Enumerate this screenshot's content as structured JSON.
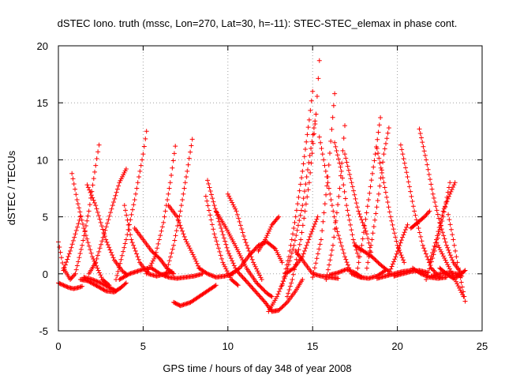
{
  "chart_data": {
    "type": "scatter",
    "title": "dSTEC Iono. truth (mssc, Lon=270, Lat=30, h=-11): STEC-STEC_elemax in phase cont.",
    "xlabel": "GPS time / hours of day 348 of year 2008",
    "ylabel": "dSTEC  / TECUs",
    "xlim": [
      0,
      25
    ],
    "ylim": [
      -5,
      20
    ],
    "xticks": [
      0,
      5,
      10,
      15,
      20,
      25
    ],
    "yticks": [
      -5,
      0,
      5,
      10,
      15,
      20
    ],
    "grid": true,
    "marker": "+",
    "colors": {
      "points": "#ff0000"
    },
    "arc_sampling_hours": 0.06,
    "series": [
      {
        "x": [
          0.0,
          0.3,
          0.7,
          1.0,
          1.4,
          1.8,
          2.2,
          2.4
        ],
        "y": [
          2.8,
          0.5,
          -0.5,
          0.0,
          2.5,
          5.5,
          9.5,
          11.3
        ]
      },
      {
        "x": [
          0.0,
          0.3,
          0.6,
          0.9,
          1.2,
          1.4
        ],
        "y": [
          -0.8,
          -1.0,
          -1.2,
          -1.3,
          -1.2,
          -1.1
        ]
      },
      {
        "x": [
          0.3,
          0.7,
          1.0,
          1.3
        ],
        "y": [
          0.3,
          2.0,
          3.5,
          5.0
        ]
      },
      {
        "x": [
          0.8,
          1.1,
          1.5,
          2.0,
          2.6,
          3.0
        ],
        "y": [
          8.8,
          6.5,
          4.0,
          1.5,
          -0.5,
          -1.0
        ]
      },
      {
        "x": [
          1.3,
          1.7,
          2.2,
          2.8,
          3.3,
          3.7,
          4.0
        ],
        "y": [
          -0.5,
          -0.6,
          -1.0,
          -1.5,
          -1.6,
          -1.2,
          -0.8
        ]
      },
      {
        "x": [
          1.7,
          2.2,
          2.8,
          3.3,
          3.8,
          4.0
        ],
        "y": [
          7.8,
          6.0,
          3.0,
          1.2,
          0.2,
          0.0
        ]
      },
      {
        "x": [
          1.8,
          2.2,
          2.7,
          3.2,
          3.6,
          4.0
        ],
        "y": [
          0.0,
          1.0,
          3.5,
          6.0,
          8.0,
          9.2
        ]
      },
      {
        "x": [
          1.5,
          2.0,
          2.5,
          3.0,
          3.4
        ],
        "y": [
          -0.3,
          -0.5,
          -0.8,
          -1.2,
          -1.5
        ]
      },
      {
        "x": [
          3.9,
          4.3,
          4.8,
          5.3,
          5.8,
          6.3,
          6.7
        ],
        "y": [
          6.0,
          3.0,
          1.0,
          0.0,
          -0.2,
          0.0,
          0.2
        ]
      },
      {
        "x": [
          3.4,
          4.0,
          4.5,
          5.0,
          5.2
        ],
        "y": [
          -0.5,
          3.0,
          6.5,
          10.5,
          12.5
        ]
      },
      {
        "x": [
          3.6,
          4.2,
          4.8,
          5.3
        ],
        "y": [
          -0.5,
          0.0,
          0.3,
          0.5
        ]
      },
      {
        "x": [
          4.5,
          5.0,
          5.5,
          6.0,
          6.4,
          6.8
        ],
        "y": [
          4.0,
          3.0,
          2.0,
          1.3,
          0.5,
          0.0
        ]
      },
      {
        "x": [
          5.2,
          5.7,
          6.2,
          6.6,
          6.9
        ],
        "y": [
          0.0,
          1.5,
          4.5,
          8.0,
          11.2
        ]
      },
      {
        "x": [
          5.5,
          6.0,
          6.5,
          7.0,
          7.5,
          8.0,
          8.5
        ],
        "y": [
          0.5,
          0.0,
          -0.3,
          -0.4,
          -0.3,
          -0.2,
          0.0
        ]
      },
      {
        "x": [
          6.3,
          6.8,
          7.2,
          7.6,
          7.9
        ],
        "y": [
          -0.2,
          2.5,
          5.5,
          9.0,
          11.8
        ]
      },
      {
        "x": [
          6.5,
          7.0,
          7.5,
          8.0,
          8.3
        ],
        "y": [
          6.0,
          5.0,
          3.0,
          1.5,
          0.5
        ]
      },
      {
        "x": [
          6.8,
          7.2,
          7.8,
          8.3,
          8.8,
          9.3
        ],
        "y": [
          -2.5,
          -2.8,
          -2.5,
          -2.0,
          -1.5,
          -1.0
        ]
      },
      {
        "x": [
          8.8,
          9.2,
          9.6,
          10.0,
          10.5,
          11.0
        ],
        "y": [
          8.2,
          6.0,
          4.0,
          2.0,
          0.3,
          -0.5
        ]
      },
      {
        "x": [
          8.3,
          8.8,
          9.3,
          9.8,
          10.3
        ],
        "y": [
          0.5,
          0.0,
          -0.3,
          -0.2,
          0.0
        ]
      },
      {
        "x": [
          8.7,
          9.2,
          9.7,
          10.2,
          10.6
        ],
        "y": [
          6.8,
          3.5,
          1.0,
          -0.5,
          -1.0
        ]
      },
      {
        "x": [
          9.3,
          9.9,
          10.5,
          11.1,
          11.7,
          12.3,
          12.6
        ],
        "y": [
          5.5,
          4.0,
          2.3,
          0.5,
          -0.8,
          -1.7,
          -2.0
        ]
      },
      {
        "x": [
          10.0,
          10.5,
          11.0,
          11.5,
          12.0
        ],
        "y": [
          7.0,
          5.5,
          3.0,
          1.0,
          -0.5
        ]
      },
      {
        "x": [
          10.2,
          10.7,
          11.2,
          11.8,
          12.3,
          12.8,
          13.2
        ],
        "y": [
          0.0,
          0.5,
          1.5,
          2.5,
          2.8,
          2.2,
          1.0
        ]
      },
      {
        "x": [
          11.0,
          11.6,
          12.2,
          12.6,
          13.0,
          13.5,
          14.0,
          14.4
        ],
        "y": [
          -0.5,
          -1.5,
          -2.5,
          -3.3,
          -3.2,
          -2.5,
          -1.5,
          -0.5
        ]
      },
      {
        "x": [
          11.8,
          12.2,
          12.6,
          13.0
        ],
        "y": [
          2.0,
          3.0,
          4.3,
          5.0
        ]
      },
      {
        "x": [
          12.4,
          12.9,
          13.4,
          13.9,
          14.4,
          14.9,
          15.2
        ],
        "y": [
          -3.3,
          -2.0,
          -0.2,
          2.5,
          6.0,
          11.0,
          14.0
        ]
      },
      {
        "x": [
          13.2,
          13.6,
          14.0,
          14.4,
          14.8,
          15.0
        ],
        "y": [
          -1.0,
          1.5,
          5.0,
          9.0,
          13.5,
          16.0
        ]
      },
      {
        "x": [
          13.5,
          13.8,
          14.3,
          14.8,
          15.2,
          15.4
        ],
        "y": [
          -2.0,
          -0.5,
          3.0,
          8.0,
          14.0,
          18.7
        ]
      },
      {
        "x": [
          13.4,
          13.9,
          14.4,
          14.9,
          15.3
        ],
        "y": [
          0.0,
          0.5,
          1.5,
          3.5,
          5.0
        ]
      },
      {
        "x": [
          14.0,
          14.5,
          15.0,
          15.5,
          16.0,
          16.5
        ],
        "y": [
          2.0,
          1.0,
          0.0,
          -0.2,
          -0.3,
          -0.4
        ]
      },
      {
        "x": [
          15.0,
          15.5,
          15.9,
          16.3
        ],
        "y": [
          -0.3,
          3.0,
          8.5,
          15.8
        ]
      },
      {
        "x": [
          15.4,
          15.9,
          16.4,
          16.9,
          17.2
        ],
        "y": [
          12.0,
          8.0,
          4.0,
          1.5,
          0.3
        ]
      },
      {
        "x": [
          15.8,
          16.2,
          16.6,
          16.9
        ],
        "y": [
          -0.5,
          2.5,
          7.5,
          13.0
        ]
      },
      {
        "x": [
          16.0,
          16.5,
          17.0,
          17.5,
          17.9
        ],
        "y": [
          -0.1,
          0.1,
          0.4,
          0.1,
          -0.3
        ]
      },
      {
        "x": [
          16.3,
          16.7,
          17.0,
          17.4,
          17.7
        ],
        "y": [
          11.5,
          9.0,
          6.0,
          3.0,
          1.5
        ]
      },
      {
        "x": [
          16.9,
          17.3,
          17.7,
          18.2,
          18.5
        ],
        "y": [
          10.5,
          8.0,
          5.5,
          3.5,
          1.5
        ]
      },
      {
        "x": [
          17.3,
          17.8,
          18.3,
          18.8,
          19.3
        ],
        "y": [
          0.0,
          -0.3,
          -0.4,
          -0.2,
          0.3
        ]
      },
      {
        "x": [
          17.6,
          17.9,
          18.3,
          18.7,
          19.0
        ],
        "y": [
          0.0,
          2.5,
          6.5,
          10.5,
          13.7
        ]
      },
      {
        "x": [
          17.5,
          18.0,
          18.5,
          19.0,
          19.5
        ],
        "y": [
          2.5,
          2.0,
          1.5,
          0.8,
          0.2
        ]
      },
      {
        "x": [
          18.2,
          18.5,
          18.9,
          19.2,
          19.5
        ],
        "y": [
          0.5,
          3.0,
          7.0,
          10.5,
          12.8
        ]
      },
      {
        "x": [
          18.8,
          19.2,
          19.6,
          20.0,
          20.4
        ],
        "y": [
          11.0,
          8.0,
          5.0,
          2.5,
          1.0
        ]
      },
      {
        "x": [
          18.8,
          19.3,
          19.8,
          20.3,
          20.8
        ],
        "y": [
          -0.4,
          -0.2,
          0.0,
          0.2,
          0.3
        ]
      },
      {
        "x": [
          19.5,
          19.9,
          20.3,
          20.6
        ],
        "y": [
          0.0,
          1.5,
          3.2,
          4.3
        ]
      },
      {
        "x": [
          19.8,
          20.3,
          20.8,
          21.3,
          21.8
        ],
        "y": [
          -0.2,
          0.0,
          0.2,
          0.3,
          0.1
        ]
      },
      {
        "x": [
          20.2,
          20.6,
          21.0,
          21.5,
          22.0,
          22.5
        ],
        "y": [
          11.3,
          8.5,
          5.5,
          2.5,
          0.5,
          -0.3
        ]
      },
      {
        "x": [
          20.9,
          21.4,
          21.9,
          22.4,
          22.9
        ],
        "y": [
          0.5,
          0.0,
          -0.3,
          -0.4,
          -0.3
        ]
      },
      {
        "x": [
          21.3,
          21.7,
          22.1,
          22.5,
          22.9,
          23.3,
          23.8
        ],
        "y": [
          12.7,
          10.0,
          7.0,
          4.5,
          2.5,
          1.0,
          0.0
        ]
      },
      {
        "x": [
          21.7,
          22.2,
          22.7,
          23.1
        ],
        "y": [
          -0.5,
          2.0,
          5.0,
          8.0
        ]
      },
      {
        "x": [
          20.8,
          21.2,
          21.6,
          21.9
        ],
        "y": [
          4.0,
          4.5,
          5.0,
          5.5
        ]
      },
      {
        "x": [
          21.9,
          22.3,
          22.7,
          23.1,
          23.4
        ],
        "y": [
          1.0,
          3.0,
          5.5,
          7.0,
          8.0
        ]
      },
      {
        "x": [
          22.5,
          22.9,
          23.3,
          23.6,
          24.0
        ],
        "y": [
          0.5,
          0.0,
          -0.4,
          -0.2,
          0.3
        ]
      },
      {
        "x": [
          22.4,
          22.9,
          23.4,
          23.9
        ],
        "y": [
          2.5,
          1.0,
          -0.5,
          -2.0
        ]
      },
      {
        "x": [
          23.0,
          23.3,
          23.6,
          24.0
        ],
        "y": [
          5.2,
          3.0,
          0.5,
          -2.4
        ]
      },
      {
        "x": [
          22.0,
          22.5,
          23.0,
          23.5,
          23.8
        ],
        "y": [
          -0.2,
          0.0,
          0.1,
          0.0,
          -0.2
        ]
      }
    ]
  }
}
